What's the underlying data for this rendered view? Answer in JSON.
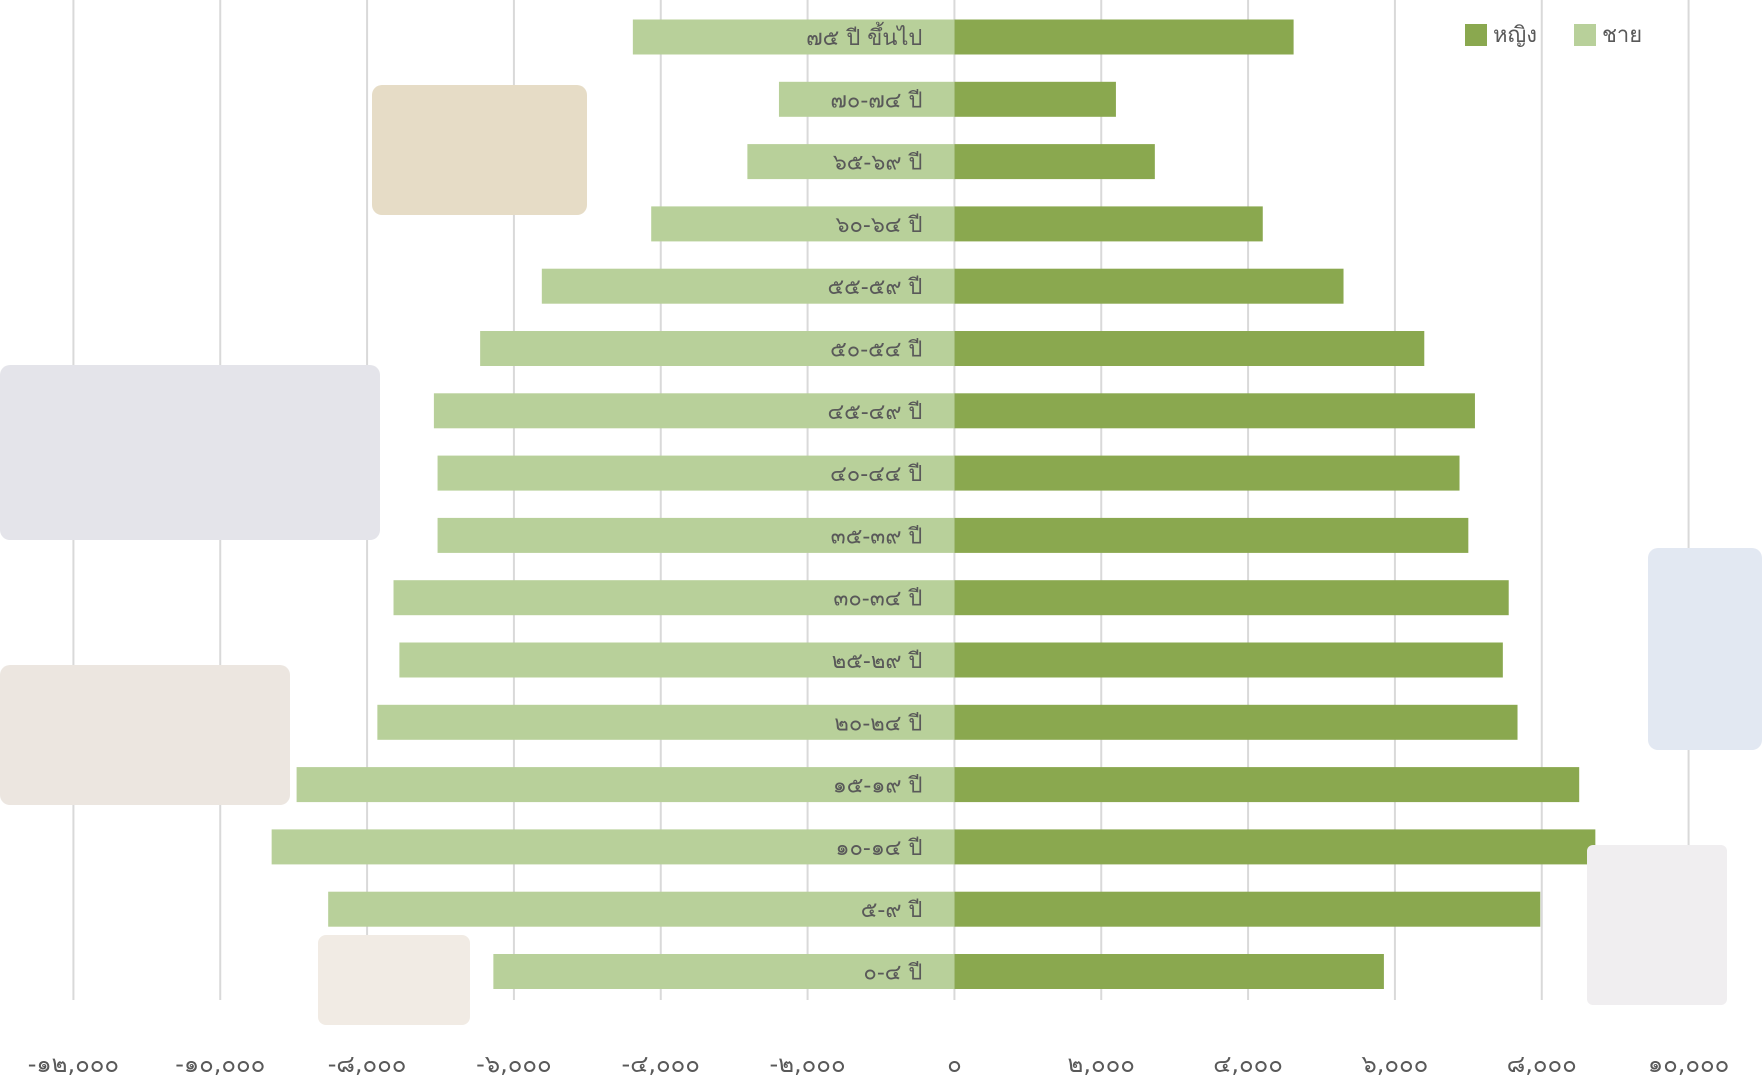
{
  "chart_data": {
    "type": "bar",
    "orientation": "horizontal",
    "stacked": true,
    "categories": [
      "๗๕ ปี ขึ้นไป",
      "๗๐-๗๔ ปี",
      "๖๕-๖๙ ปี",
      "๖๐-๖๔ ปี",
      "๕๕-๕๙ ปี",
      "๕๐-๕๔ ปี",
      "๔๕-๔๙ ปี",
      "๔๐-๔๔ ปี",
      "๓๕-๓๙ ปี",
      "๓๐-๓๔ ปี",
      "๒๕-๒๙ ปี",
      "๒๐-๒๔ ปี",
      "๑๕-๑๙ ปี",
      "๑๐-๑๔ ปี",
      "๕-๙ ปี",
      "๐-๔ ปี"
    ],
    "series": [
      {
        "name": "หญิง",
        "color": "#8aa84f",
        "values": [
          4620,
          2200,
          2730,
          4200,
          5300,
          6400,
          7090,
          6880,
          7000,
          7550,
          7470,
          7670,
          8510,
          8730,
          7980,
          5850
        ]
      },
      {
        "name": "ชาย",
        "color": "#b8d09a",
        "values": [
          -4380,
          -2390,
          -2820,
          -4130,
          -5620,
          -6460,
          -7090,
          -7040,
          -7040,
          -7640,
          -7560,
          -7860,
          -8960,
          -9300,
          -8530,
          -6280
        ]
      }
    ],
    "xlim": [
      -13000,
      11000
    ],
    "xticks": [
      {
        "value": -12000,
        "label": "-๑๒,๐๐๐"
      },
      {
        "value": -10000,
        "label": "-๑๐,๐๐๐"
      },
      {
        "value": -8000,
        "label": "-๘,๐๐๐"
      },
      {
        "value": -6000,
        "label": "-๖,๐๐๐"
      },
      {
        "value": -4000,
        "label": "-๔,๐๐๐"
      },
      {
        "value": -2000,
        "label": "-๒,๐๐๐"
      },
      {
        "value": 0,
        "label": "๐"
      },
      {
        "value": 2000,
        "label": "๒,๐๐๐"
      },
      {
        "value": 4000,
        "label": "๔,๐๐๐"
      },
      {
        "value": 6000,
        "label": "๖,๐๐๐"
      },
      {
        "value": 8000,
        "label": "๘,๐๐๐"
      },
      {
        "value": 10000,
        "label": "๑๐,๐๐๐"
      }
    ],
    "grid": true,
    "legend": "top-right"
  }
}
